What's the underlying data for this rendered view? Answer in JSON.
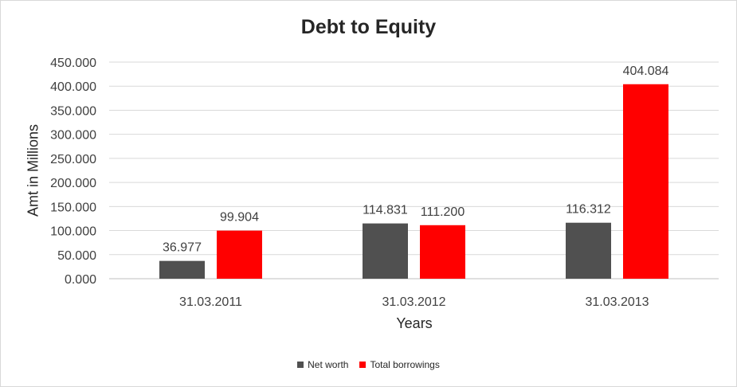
{
  "chart_data": {
    "type": "bar",
    "title": "Debt to Equity",
    "xlabel": "Years",
    "ylabel": "Amt in Millions",
    "categories": [
      "31.03.2011",
      "31.03.2012",
      "31.03.2013"
    ],
    "series": [
      {
        "name": "Net worth",
        "values": [
          36.977,
          114.831,
          116.312
        ],
        "labels": [
          "36.977",
          "114.831",
          "116.312"
        ],
        "color": "#505050"
      },
      {
        "name": "Total borrowings",
        "values": [
          99.904,
          111.2,
          404.084
        ],
        "labels": [
          "99.904",
          "111.200",
          "404.084"
        ],
        "color": "#ff0000"
      }
    ],
    "ylim": [
      0,
      450
    ],
    "yticks": [
      0,
      50,
      100,
      150,
      200,
      250,
      300,
      350,
      400,
      450
    ],
    "ytick_labels": [
      "0.000",
      "50.000",
      "100.000",
      "150.000",
      "200.000",
      "250.000",
      "300.000",
      "350.000",
      "400.000",
      "450.000"
    ],
    "grid": true,
    "legend_position": "bottom"
  }
}
